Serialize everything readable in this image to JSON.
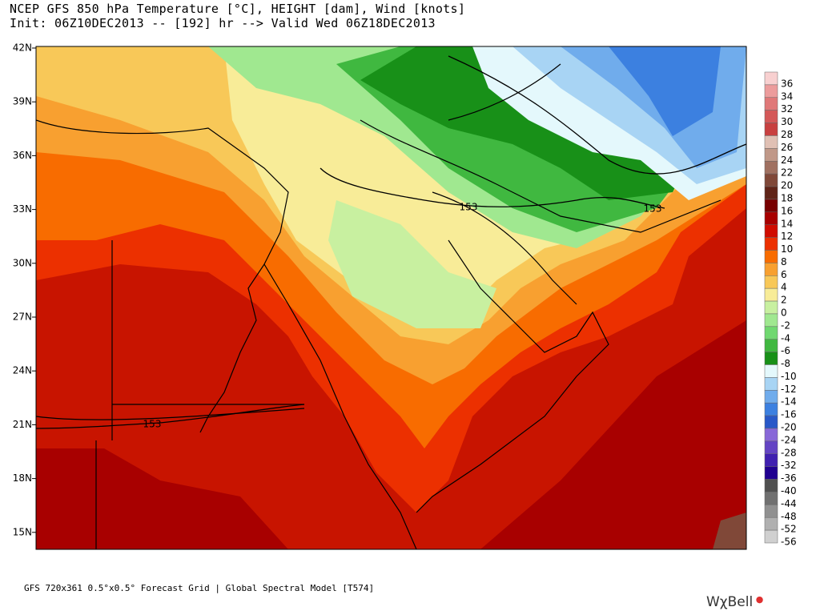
{
  "header": {
    "title_line1": "NCEP GFS 850 hPa Temperature [°C], HEIGHT [dam], Wind [knots]",
    "title_line2": "Init: 06Z10DEC2013 -- [192] hr --> Valid Wed 06Z18DEC2013"
  },
  "map": {
    "lat_labels": [
      "42N",
      "39N",
      "36N",
      "33N",
      "30N",
      "27N",
      "24N",
      "21N",
      "18N",
      "15N"
    ],
    "contour_labels": [
      "153",
      "153",
      "153"
    ]
  },
  "colorbar": [
    {
      "label": "36",
      "color": "#f8d0d0"
    },
    {
      "label": "34",
      "color": "#ec9c9c"
    },
    {
      "label": "32",
      "color": "#e07878"
    },
    {
      "label": "30",
      "color": "#d45858"
    },
    {
      "label": "28",
      "color": "#c84040"
    },
    {
      "label": "26",
      "color": "#e0c0b4"
    },
    {
      "label": "24",
      "color": "#c09888"
    },
    {
      "label": "22",
      "color": "#a07060"
    },
    {
      "label": "20",
      "color": "#804838"
    },
    {
      "label": "18",
      "color": "#602418"
    },
    {
      "label": "16",
      "color": "#780000"
    },
    {
      "label": "14",
      "color": "#a80000"
    },
    {
      "label": "12",
      "color": "#d00c00"
    },
    {
      "label": "10",
      "color": "#ec3000"
    },
    {
      "label": "8",
      "color": "#f86c00"
    },
    {
      "label": "6",
      "color": "#f8a030"
    },
    {
      "label": "4",
      "color": "#f8c858"
    },
    {
      "label": "2",
      "color": "#f8ec98"
    },
    {
      "label": "0",
      "color": "#c8f0a0"
    },
    {
      "label": "-2",
      "color": "#a0e890"
    },
    {
      "label": "-4",
      "color": "#70d870"
    },
    {
      "label": "-6",
      "color": "#40b840"
    },
    {
      "label": "-8",
      "color": "#189018"
    },
    {
      "label": "-10",
      "color": "#e4f8fc"
    },
    {
      "label": "-12",
      "color": "#a8d4f4"
    },
    {
      "label": "-14",
      "color": "#70acec"
    },
    {
      "label": "-16",
      "color": "#3c80e0"
    },
    {
      "label": "-20",
      "color": "#2858c8"
    },
    {
      "label": "-24",
      "color": "#8868d8"
    },
    {
      "label": "-28",
      "color": "#6444c4"
    },
    {
      "label": "-32",
      "color": "#4020b0"
    },
    {
      "label": "-36",
      "color": "#200090"
    },
    {
      "label": "-40",
      "color": "#505050"
    },
    {
      "label": "-44",
      "color": "#707070"
    },
    {
      "label": "-48",
      "color": "#909090"
    },
    {
      "label": "-52",
      "color": "#b0b0b0"
    },
    {
      "label": "-56",
      "color": "#d0d0d0"
    }
  ],
  "footer": "GFS 720x361 0.5°x0.5° Forecast Grid | Global Spectral Model [T574]",
  "logo": "WχBell"
}
